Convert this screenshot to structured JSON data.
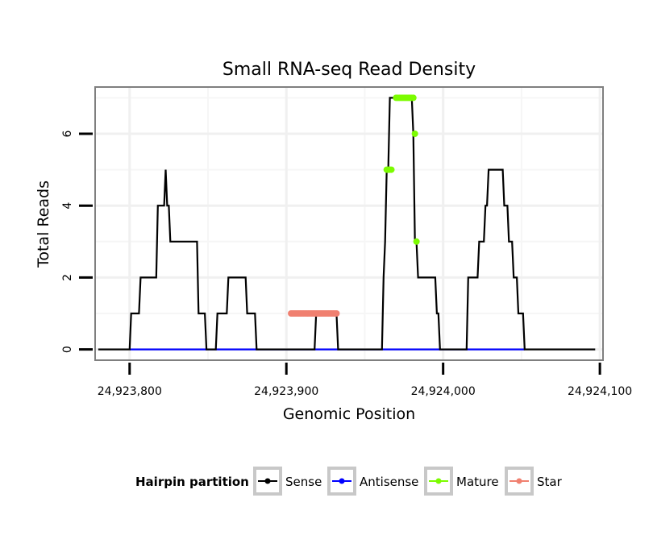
{
  "chart_data": {
    "type": "line",
    "title": "Small RNA-seq Read Density",
    "xlabel": "Genomic Position",
    "ylabel": "Total Reads",
    "xlim": [
      24923778,
      24924102
    ],
    "ylim": [
      -0.3,
      7.3
    ],
    "x_ticks": [
      24923800,
      24923900,
      24924000,
      24924100
    ],
    "x_tick_labels": [
      "24,923,800",
      "24,923,900",
      "24,924,000",
      "24,924,100"
    ],
    "y_ticks": [
      0,
      2,
      4,
      6
    ],
    "y_tick_labels": [
      "0",
      "2",
      "4",
      "6"
    ],
    "grid": true,
    "legend": {
      "title": "Hairpin partition",
      "position": "bottom",
      "entries": [
        {
          "label": "Sense",
          "color": "#000000"
        },
        {
          "label": "Antisense",
          "color": "#0000ff"
        },
        {
          "label": "Mature",
          "color": "#7cfc00"
        },
        {
          "label": "Star",
          "color": "#f08070"
        }
      ]
    },
    "series": [
      {
        "name": "Sense",
        "color": "#000000",
        "style": "line",
        "x": [
          24923780,
          24923800,
          24923801,
          24923806,
          24923807,
          24923817,
          24923818,
          24923822,
          24923823,
          24923824,
          24923825,
          24923826,
          24923827,
          24923843,
          24923844,
          24923848,
          24923849,
          24923855,
          24923856,
          24923862,
          24923863,
          24923874,
          24923875,
          24923880,
          24923881,
          24923918,
          24923919,
          24923932,
          24923933,
          24923961,
          24923962,
          24923963,
          24923964,
          24923965,
          24923966,
          24923970,
          24923971,
          24923980,
          24923981,
          24923982,
          24923983,
          24923984,
          24923985,
          24923986,
          24923987,
          24923995,
          24923996,
          24923997,
          24923998,
          24924015,
          24924016,
          24924022,
          24924023,
          24924026,
          24924027,
          24924028,
          24924029,
          24924031,
          24924032,
          24924038,
          24924039,
          24924041,
          24924042,
          24924044,
          24924045,
          24924047,
          24924048,
          24924051,
          24924052,
          24924097
        ],
        "values": [
          0,
          0,
          1,
          1,
          2,
          2,
          4,
          4,
          5,
          4,
          4,
          3,
          3,
          3,
          1,
          1,
          0,
          0,
          1,
          1,
          2,
          2,
          1,
          1,
          0,
          0,
          1,
          1,
          0,
          0,
          2,
          3,
          5,
          5,
          7,
          7,
          7,
          7,
          6,
          3,
          3,
          2,
          2,
          2,
          2,
          2,
          1,
          1,
          0,
          0,
          2,
          2,
          3,
          3,
          4,
          4,
          5,
          5,
          5,
          5,
          4,
          4,
          3,
          3,
          2,
          2,
          1,
          1,
          0,
          0
        ]
      },
      {
        "name": "Antisense",
        "color": "#0000ff",
        "style": "line",
        "x": [
          24923800,
          24924052
        ],
        "values": [
          0,
          0
        ]
      },
      {
        "name": "Mature",
        "color": "#7cfc00",
        "style": "points",
        "x": [
          24923964,
          24923965,
          24923966,
          24923967,
          24923970,
          24923971,
          24923972,
          24923973,
          24923974,
          24923975,
          24923976,
          24923977,
          24923978,
          24923979,
          24923980,
          24923981,
          24923982,
          24923983
        ],
        "values": [
          5,
          5,
          5,
          5,
          7,
          7,
          7,
          7,
          7,
          7,
          7,
          7,
          7,
          7,
          7,
          7,
          6,
          3
        ]
      },
      {
        "name": "Star",
        "color": "#f08070",
        "style": "points",
        "x": [
          24923903,
          24923904,
          24923905,
          24923906,
          24923907,
          24923908,
          24923909,
          24923910,
          24923911,
          24923912,
          24923913,
          24923914,
          24923915,
          24923916,
          24923917,
          24923918,
          24923919,
          24923920,
          24923921,
          24923922,
          24923923,
          24923924,
          24923925,
          24923926,
          24923927,
          24923928,
          24923929,
          24923930,
          24923931,
          24923932
        ],
        "values": [
          1,
          1,
          1,
          1,
          1,
          1,
          1,
          1,
          1,
          1,
          1,
          1,
          1,
          1,
          1,
          1,
          1,
          1,
          1,
          1,
          1,
          1,
          1,
          1,
          1,
          1,
          1,
          1,
          1,
          1
        ]
      }
    ]
  }
}
